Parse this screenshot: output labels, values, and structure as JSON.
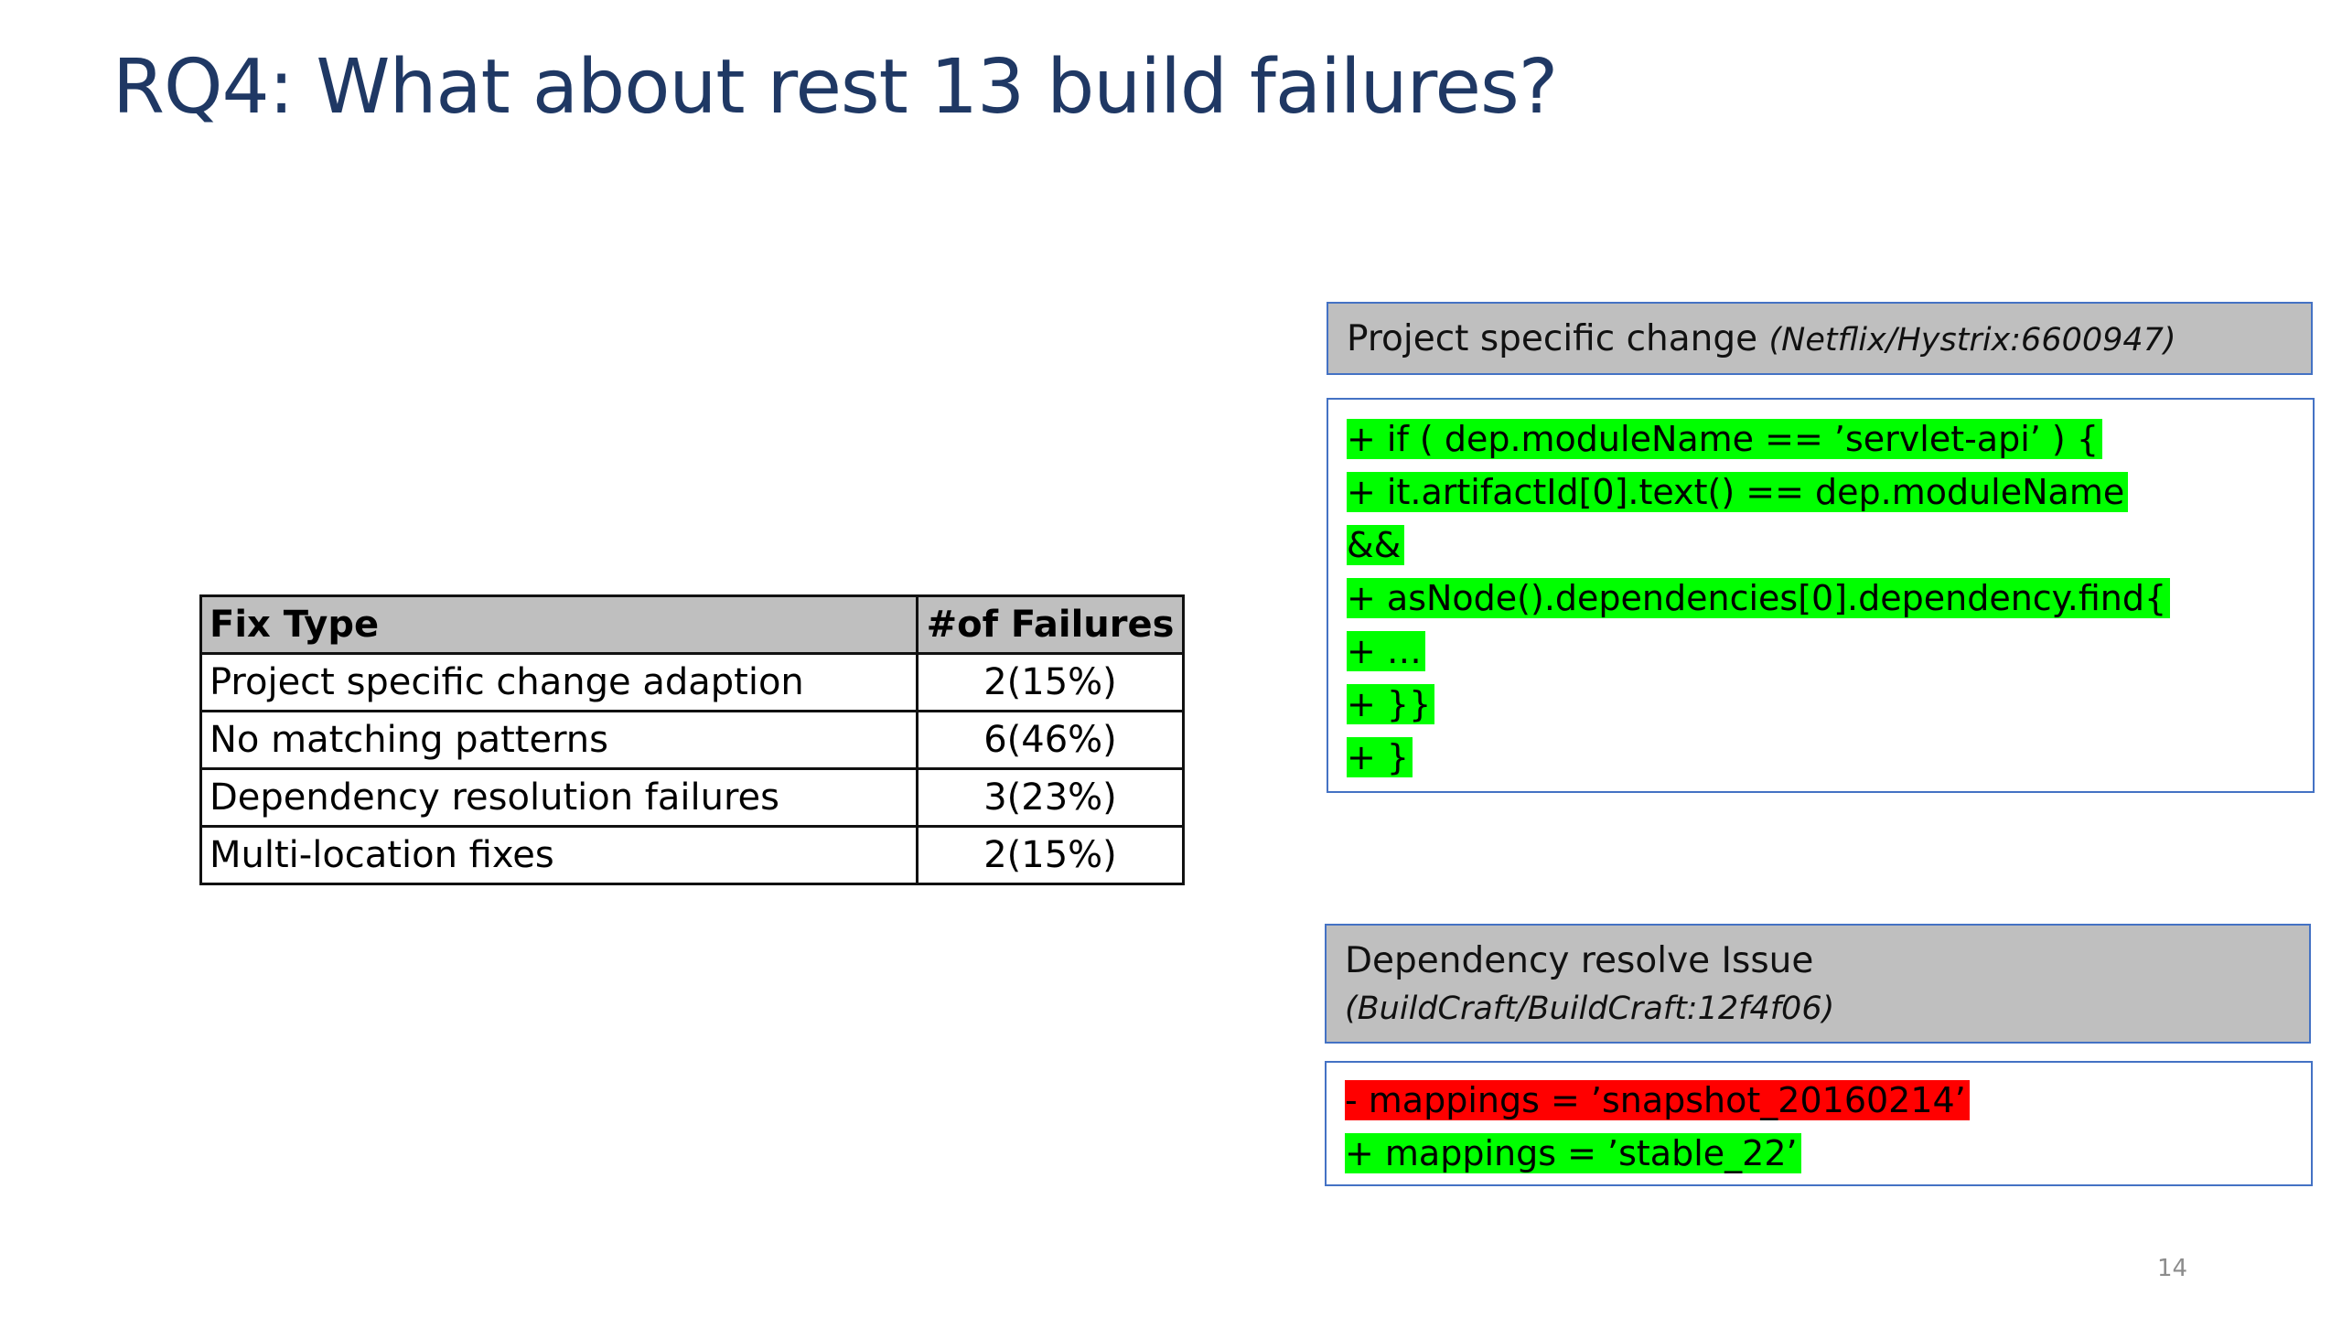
{
  "slide": {
    "title": "RQ4: What about rest 13 build failures?",
    "page_number": "14"
  },
  "table": {
    "headers": [
      "Fix Type",
      "#of Failures"
    ],
    "rows": [
      {
        "fix_type": "Project specific change adaption",
        "failures": "2(15%)"
      },
      {
        "fix_type": "No matching patterns",
        "failures": "6(46%)"
      },
      {
        "fix_type": "Dependency resolution failures",
        "failures": "3(23%)"
      },
      {
        "fix_type": "Multi-location fixes",
        "failures": "2(15%)"
      }
    ]
  },
  "example_1": {
    "title": "Project specific change",
    "reference": "(Netflix/Hystrix:6600947)",
    "code_lines": [
      "+ if ( dep.moduleName == ’servlet-api’ ) {",
      "+ it.artifactId[0].text() == dep.moduleName",
      "&&",
      "+ asNode().dependencies[0].dependency.find{",
      "+ …",
      "+ }}",
      "+ }"
    ]
  },
  "example_2": {
    "title": "Dependency resolve Issue",
    "reference": "(BuildCraft/BuildCraft:12f4f06)",
    "removed_line": "- mappings = ’snapshot_20160214’",
    "added_line": "+ mappings = ’stable_22’"
  },
  "colors": {
    "title": "#1f3864",
    "header_fill": "#bfbfbf",
    "panel_border": "#4472c4",
    "added_highlight": "#00ff00",
    "removed_highlight": "#ff0000"
  }
}
